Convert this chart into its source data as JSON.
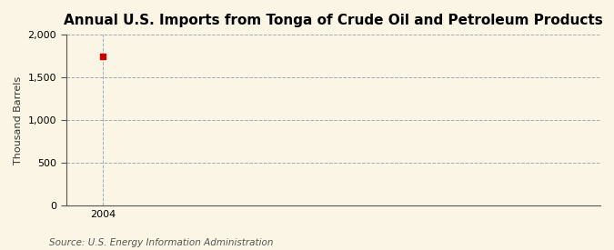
{
  "title": "Annual U.S. Imports from Tonga of Crude Oil and Petroleum Products",
  "ylabel": "Thousand Barrels",
  "source": "Source: U.S. Energy Information Administration",
  "x_data": [
    2004
  ],
  "y_data": [
    1748
  ],
  "dot_color": "#cc0000",
  "dot_size": 18,
  "ylim": [
    0,
    2000
  ],
  "xlim": [
    2003.3,
    2013.5
  ],
  "yticks": [
    0,
    500,
    1000,
    1500,
    2000
  ],
  "xticks": [
    2004
  ],
  "background_color": "#faf5e4",
  "plot_background": "#faf5e4",
  "grid_color": "#8899aa",
  "grid_linestyle": "--",
  "grid_linewidth": 0.7,
  "title_fontsize": 11,
  "label_fontsize": 8,
  "tick_fontsize": 8,
  "source_fontsize": 7.5
}
